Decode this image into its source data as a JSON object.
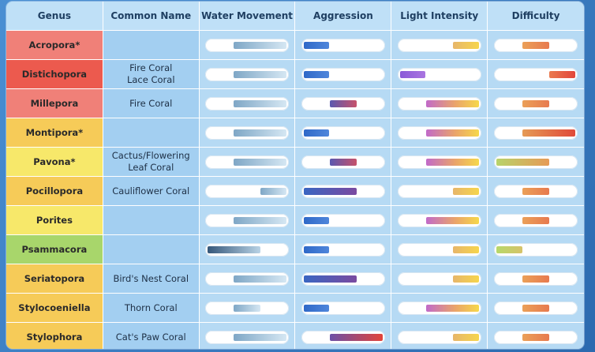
{
  "header": {
    "genus": "Genus",
    "common_name": "Common Name",
    "water": "Water Movement",
    "aggression": "Aggression",
    "light": "Light Intensity",
    "difficulty": "Difficulty"
  },
  "colors": {
    "red_tier": "#f07f77",
    "red_deep": "#ea5a4d",
    "amber_tier": "#f7cc55",
    "yellow_tier": "#f7e56a",
    "green_tier": "#a9d66a"
  },
  "rows": [
    {
      "genus": "Acropora*",
      "common": [
        "",
        ""
      ],
      "tier_color": "#f08078",
      "water": {
        "start": 0.33,
        "end": 1.0,
        "style": "g-water"
      },
      "aggression": {
        "start": 0.0,
        "end": 0.32,
        "style": "g-aggr-blue"
      },
      "light": {
        "start": 0.67,
        "end": 1.0,
        "style": "g-light-amber"
      },
      "difficulty": {
        "start": 0.33,
        "end": 0.67,
        "style": "g-diff-orange"
      }
    },
    {
      "genus": "Distichopora",
      "common": [
        "Fire Coral",
        "Lace Coral"
      ],
      "tier_color": "#ec5a4e",
      "water": {
        "start": 0.33,
        "end": 1.0,
        "style": "g-water"
      },
      "aggression": {
        "start": 0.0,
        "end": 0.32,
        "style": "g-aggr-blue"
      },
      "light": {
        "start": 0.0,
        "end": 0.32,
        "style": "g-light-purple"
      },
      "difficulty": {
        "start": 0.67,
        "end": 1.0,
        "style": "g-diff-red"
      }
    },
    {
      "genus": "Millepora",
      "common": [
        "Fire Coral",
        ""
      ],
      "tier_color": "#f08078",
      "water": {
        "start": 0.33,
        "end": 1.0,
        "style": "g-water"
      },
      "aggression": {
        "start": 0.33,
        "end": 0.67,
        "style": "g-aggr-mid"
      },
      "light": {
        "start": 0.33,
        "end": 1.0,
        "style": "g-light-full"
      },
      "difficulty": {
        "start": 0.33,
        "end": 0.67,
        "style": "g-diff-orange"
      }
    },
    {
      "genus": "Montipora*",
      "common": [
        "",
        ""
      ],
      "tier_color": "#f6cb58",
      "water": {
        "start": 0.33,
        "end": 1.0,
        "style": "g-water"
      },
      "aggression": {
        "start": 0.0,
        "end": 0.32,
        "style": "g-aggr-blue"
      },
      "light": {
        "start": 0.33,
        "end": 1.0,
        "style": "g-light-full"
      },
      "difficulty": {
        "start": 0.33,
        "end": 1.0,
        "style": "g-diff-wide"
      }
    },
    {
      "genus": "Pavona*",
      "common": [
        "Cactus/Flowering",
        "Leaf Coral"
      ],
      "tier_color": "#f7e86a",
      "water": {
        "start": 0.33,
        "end": 1.0,
        "style": "g-water"
      },
      "aggression": {
        "start": 0.33,
        "end": 0.67,
        "style": "g-aggr-mid"
      },
      "light": {
        "start": 0.33,
        "end": 1.0,
        "style": "g-light-full"
      },
      "difficulty": {
        "start": 0.0,
        "end": 0.67,
        "style": "g-diff-green"
      }
    },
    {
      "genus": "Pocillopora",
      "common": [
        "Cauliflower Coral",
        ""
      ],
      "tier_color": "#f6cb58",
      "water": {
        "start": 0.67,
        "end": 1.0,
        "style": "g-water"
      },
      "aggression": {
        "start": 0.0,
        "end": 0.67,
        "style": "g-aggr-wide"
      },
      "light": {
        "start": 0.67,
        "end": 1.0,
        "style": "g-light-amber"
      },
      "difficulty": {
        "start": 0.33,
        "end": 0.67,
        "style": "g-diff-orange"
      }
    },
    {
      "genus": "Porites",
      "common": [
        "",
        ""
      ],
      "tier_color": "#f7e86a",
      "water": {
        "start": 0.33,
        "end": 1.0,
        "style": "g-water"
      },
      "aggression": {
        "start": 0.0,
        "end": 0.32,
        "style": "g-aggr-blue"
      },
      "light": {
        "start": 0.33,
        "end": 1.0,
        "style": "g-light-full"
      },
      "difficulty": {
        "start": 0.33,
        "end": 0.67,
        "style": "g-diff-orange"
      }
    },
    {
      "genus": "Psammacora",
      "common": [
        "",
        ""
      ],
      "tier_color": "#a8d66b",
      "water": {
        "start": 0.0,
        "end": 0.67,
        "style": "g-water-dark"
      },
      "aggression": {
        "start": 0.0,
        "end": 0.32,
        "style": "g-aggr-blue"
      },
      "light": {
        "start": 0.67,
        "end": 1.0,
        "style": "g-light-amber"
      },
      "difficulty": {
        "start": 0.0,
        "end": 0.33,
        "style": "g-diff-lime"
      }
    },
    {
      "genus": "Seriatopora",
      "common": [
        "Bird's Nest Coral",
        ""
      ],
      "tier_color": "#f6cb58",
      "water": {
        "start": 0.33,
        "end": 1.0,
        "style": "g-water"
      },
      "aggression": {
        "start": 0.0,
        "end": 0.67,
        "style": "g-aggr-wide"
      },
      "light": {
        "start": 0.67,
        "end": 1.0,
        "style": "g-light-amber"
      },
      "difficulty": {
        "start": 0.33,
        "end": 0.67,
        "style": "g-diff-orange"
      }
    },
    {
      "genus": "Stylocoeniella",
      "common": [
        "Thorn Coral",
        ""
      ],
      "tier_color": "#f6cb58",
      "water": {
        "start": 0.33,
        "end": 0.67,
        "style": "g-water"
      },
      "aggression": {
        "start": 0.0,
        "end": 0.32,
        "style": "g-aggr-blue"
      },
      "light": {
        "start": 0.33,
        "end": 1.0,
        "style": "g-light-full"
      },
      "difficulty": {
        "start": 0.33,
        "end": 0.67,
        "style": "g-diff-orange"
      }
    },
    {
      "genus": "Stylophora",
      "common": [
        "Cat's Paw Coral",
        ""
      ],
      "tier_color": "#f6cb58",
      "water": {
        "start": 0.33,
        "end": 1.0,
        "style": "g-water"
      },
      "aggression": {
        "start": 0.33,
        "end": 1.0,
        "style": "g-aggr-red"
      },
      "light": {
        "start": 0.67,
        "end": 1.0,
        "style": "g-light-amber"
      },
      "difficulty": {
        "start": 0.33,
        "end": 0.67,
        "style": "g-diff-orange"
      }
    }
  ]
}
